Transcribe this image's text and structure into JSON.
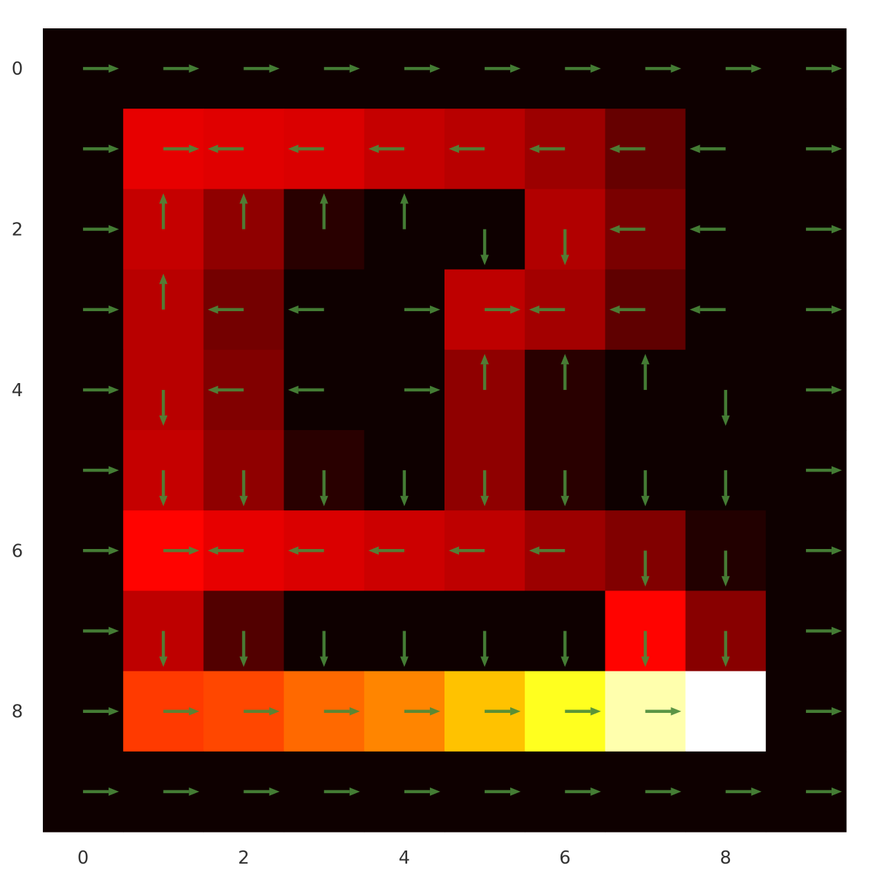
{
  "chart_data": {
    "type": "heatmap",
    "title": "",
    "xlabel": "",
    "ylabel": "",
    "x_ticks": [
      "0",
      "2",
      "4",
      "6",
      "8"
    ],
    "y_ticks": [
      "0",
      "2",
      "4",
      "6",
      "8"
    ],
    "grid": false,
    "legend": "none",
    "colormap": "hot",
    "arrow_color": "#4a8a3a",
    "values": [
      [
        0.02,
        0.02,
        0.02,
        0.02,
        0.02,
        0.02,
        0.02,
        0.02,
        0.02,
        0.02
      ],
      [
        0.02,
        0.34,
        0.33,
        0.32,
        0.29,
        0.27,
        0.23,
        0.15,
        0.02,
        0.02
      ],
      [
        0.02,
        0.29,
        0.21,
        0.06,
        0.02,
        0.02,
        0.26,
        0.18,
        0.02,
        0.02
      ],
      [
        0.02,
        0.27,
        0.17,
        0.02,
        0.02,
        0.28,
        0.24,
        0.14,
        0.02,
        0.02
      ],
      [
        0.02,
        0.27,
        0.19,
        0.02,
        0.02,
        0.21,
        0.06,
        0.02,
        0.02,
        0.02
      ],
      [
        0.02,
        0.29,
        0.21,
        0.06,
        0.02,
        0.21,
        0.06,
        0.02,
        0.02,
        0.02
      ],
      [
        0.02,
        0.38,
        0.34,
        0.32,
        0.3,
        0.28,
        0.23,
        0.19,
        0.05,
        0.02
      ],
      [
        0.02,
        0.28,
        0.12,
        0.02,
        0.02,
        0.02,
        0.02,
        0.38,
        0.2,
        0.02
      ],
      [
        0.02,
        0.46,
        0.48,
        0.53,
        0.57,
        0.66,
        0.78,
        0.92,
        1.0,
        0.02
      ],
      [
        0.02,
        0.02,
        0.02,
        0.02,
        0.02,
        0.02,
        0.02,
        0.02,
        0.02,
        0.02
      ]
    ],
    "arrows": [
      [
        "right",
        "right",
        "right",
        "right",
        "right",
        "right",
        "right",
        "right",
        "right",
        "right"
      ],
      [
        "right",
        "right",
        "left",
        "left",
        "left",
        "left",
        "left",
        "left",
        "left",
        "right"
      ],
      [
        "right",
        "up",
        "up",
        "up",
        "up",
        "down",
        "down",
        "left",
        "left",
        "right"
      ],
      [
        "right",
        "up",
        "left",
        "left",
        "right",
        "right",
        "left",
        "left",
        "left",
        "right"
      ],
      [
        "right",
        "down",
        "left",
        "left",
        "right",
        "up",
        "up",
        "up",
        "down",
        "right"
      ],
      [
        "right",
        "down",
        "down",
        "down",
        "down",
        "down",
        "down",
        "down",
        "down",
        "right"
      ],
      [
        "right",
        "right",
        "left",
        "left",
        "left",
        "left",
        "left",
        "down",
        "down",
        "right"
      ],
      [
        "right",
        "down",
        "down",
        "down",
        "down",
        "down",
        "down",
        "down",
        "down",
        "right"
      ],
      [
        "right",
        "right",
        "right",
        "right",
        "right",
        "right",
        "right",
        "right",
        "none",
        "right"
      ],
      [
        "right",
        "right",
        "right",
        "right",
        "right",
        "right",
        "right",
        "right",
        "right",
        "right"
      ]
    ]
  }
}
